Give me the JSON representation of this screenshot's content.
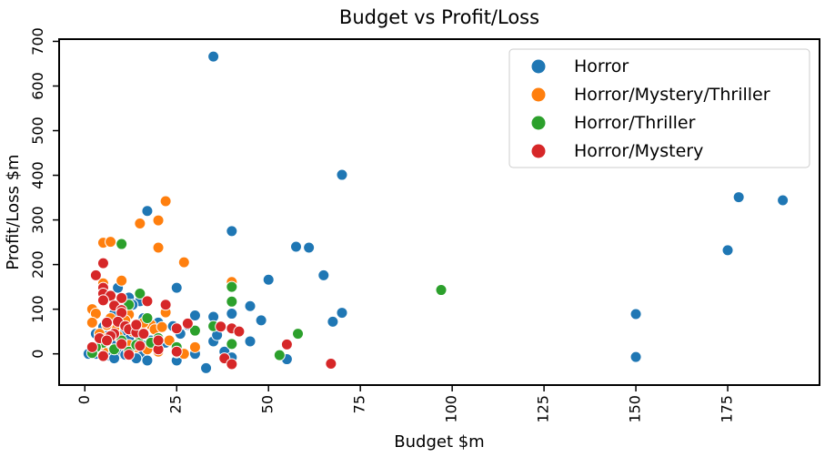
{
  "chart_data": {
    "type": "scatter",
    "title": "Budget vs Profit/Loss",
    "xlabel": "Budget $m",
    "ylabel": "Profit/Loss $m",
    "xlim": [
      -7,
      200
    ],
    "ylim": [
      -70,
      705
    ],
    "xticks": [
      0,
      25,
      50,
      75,
      100,
      125,
      150,
      175
    ],
    "yticks": [
      0,
      100,
      200,
      300,
      400,
      500,
      600,
      700
    ],
    "grid": false,
    "legend_position": "top-right",
    "series": [
      {
        "name": "Horror",
        "color": "#1f77b4",
        "points": [
          [
            35,
            666
          ],
          [
            70,
            401
          ],
          [
            178,
            351
          ],
          [
            190,
            344
          ],
          [
            17,
            320
          ],
          [
            40,
            275
          ],
          [
            175,
            232
          ],
          [
            57.5,
            240
          ],
          [
            61,
            238
          ],
          [
            65,
            176
          ],
          [
            50,
            166
          ],
          [
            25,
            148
          ],
          [
            9,
            148
          ],
          [
            12,
            126
          ],
          [
            15,
            118
          ],
          [
            45,
            107
          ],
          [
            40,
            90
          ],
          [
            70,
            92
          ],
          [
            48,
            75
          ],
          [
            67.5,
            72
          ],
          [
            30,
            86
          ],
          [
            35,
            83
          ],
          [
            150,
            89
          ],
          [
            10,
            100
          ],
          [
            13,
            110
          ],
          [
            8,
            90
          ],
          [
            16,
            80
          ],
          [
            20,
            70
          ],
          [
            28,
            65
          ],
          [
            24,
            62
          ],
          [
            5,
            60
          ],
          [
            7,
            55
          ],
          [
            11,
            50
          ],
          [
            14,
            45
          ],
          [
            3,
            45
          ],
          [
            6,
            40
          ],
          [
            9,
            35
          ],
          [
            12,
            32
          ],
          [
            18,
            30
          ],
          [
            22,
            25
          ],
          [
            35,
            28
          ],
          [
            45,
            28
          ],
          [
            4,
            25
          ],
          [
            8,
            20
          ],
          [
            10,
            15
          ],
          [
            13,
            10
          ],
          [
            16,
            18
          ],
          [
            20,
            8
          ],
          [
            30,
            12
          ],
          [
            38,
            5
          ],
          [
            2,
            5
          ],
          [
            6,
            3
          ],
          [
            9,
            0
          ],
          [
            11,
            -2
          ],
          [
            15,
            -5
          ],
          [
            17,
            -15
          ],
          [
            25,
            -15
          ],
          [
            30,
            0
          ],
          [
            40,
            -8
          ],
          [
            55,
            -12
          ],
          [
            33,
            -32
          ],
          [
            150,
            -7
          ],
          [
            3,
            0
          ],
          [
            1,
            0
          ],
          [
            7,
            -5
          ],
          [
            14,
            -10
          ],
          [
            19,
            20
          ],
          [
            26,
            45
          ],
          [
            36,
            42
          ],
          [
            8,
            -10
          ]
        ]
      },
      {
        "name": "Horror/Mystery/Thriller",
        "color": "#ff7f0e",
        "points": [
          [
            22,
            342
          ],
          [
            15,
            292
          ],
          [
            20,
            299
          ],
          [
            5,
            249
          ],
          [
            7,
            251
          ],
          [
            20,
            238
          ],
          [
            27,
            205
          ],
          [
            10,
            164
          ],
          [
            40,
            161
          ],
          [
            5,
            158
          ],
          [
            2,
            100
          ],
          [
            3,
            90
          ],
          [
            22,
            93
          ],
          [
            12,
            88
          ],
          [
            2,
            70
          ],
          [
            18,
            65
          ],
          [
            15,
            60
          ],
          [
            8,
            55
          ],
          [
            4,
            45
          ],
          [
            6,
            35
          ],
          [
            10,
            28
          ],
          [
            12,
            20
          ],
          [
            14,
            15
          ],
          [
            17,
            10
          ],
          [
            20,
            5
          ],
          [
            25,
            3
          ],
          [
            27,
            0
          ],
          [
            3,
            10
          ],
          [
            5,
            5
          ],
          [
            9,
            40
          ],
          [
            13,
            50
          ],
          [
            16,
            70
          ],
          [
            19,
            55
          ],
          [
            21,
            60
          ],
          [
            11,
            75
          ],
          [
            7,
            80
          ],
          [
            23,
            30
          ],
          [
            30,
            15
          ],
          [
            4,
            20
          ],
          [
            6,
            65
          ]
        ]
      },
      {
        "name": "Horror/Thriller",
        "color": "#2ca02c",
        "points": [
          [
            10,
            246
          ],
          [
            97,
            143
          ],
          [
            40,
            150
          ],
          [
            15,
            135
          ],
          [
            40,
            117
          ],
          [
            12,
            110
          ],
          [
            17,
            80
          ],
          [
            35,
            62
          ],
          [
            30,
            52
          ],
          [
            58,
            45
          ],
          [
            15,
            40
          ],
          [
            10,
            30
          ],
          [
            5,
            25
          ],
          [
            3,
            15
          ],
          [
            25,
            15
          ],
          [
            40,
            22
          ],
          [
            53,
            -3
          ],
          [
            8,
            10
          ],
          [
            12,
            5
          ],
          [
            2,
            2
          ],
          [
            20,
            35
          ],
          [
            14,
            20
          ],
          [
            6,
            30
          ],
          [
            18,
            25
          ]
        ]
      },
      {
        "name": "Horror/Mystery",
        "color": "#d62728",
        "points": [
          [
            3,
            176
          ],
          [
            5,
            203
          ],
          [
            5,
            148
          ],
          [
            5,
            135
          ],
          [
            7,
            130
          ],
          [
            10,
            125
          ],
          [
            5,
            120
          ],
          [
            17,
            118
          ],
          [
            8,
            108
          ],
          [
            22,
            110
          ],
          [
            10,
            98
          ],
          [
            10,
            92
          ],
          [
            28,
            68
          ],
          [
            37,
            61
          ],
          [
            25,
            57
          ],
          [
            40,
            57
          ],
          [
            42,
            50
          ],
          [
            6,
            70
          ],
          [
            9,
            72
          ],
          [
            11,
            62
          ],
          [
            12,
            55
          ],
          [
            14,
            48
          ],
          [
            8,
            45
          ],
          [
            7,
            40
          ],
          [
            4,
            35
          ],
          [
            6,
            30
          ],
          [
            10,
            22
          ],
          [
            15,
            18
          ],
          [
            20,
            10
          ],
          [
            25,
            5
          ],
          [
            38,
            -10
          ],
          [
            40,
            -23
          ],
          [
            55,
            21
          ],
          [
            67,
            -22
          ],
          [
            2,
            15
          ],
          [
            5,
            -5
          ],
          [
            12,
            -2
          ],
          [
            20,
            30
          ],
          [
            14,
            65
          ],
          [
            16,
            45
          ]
        ]
      }
    ]
  }
}
